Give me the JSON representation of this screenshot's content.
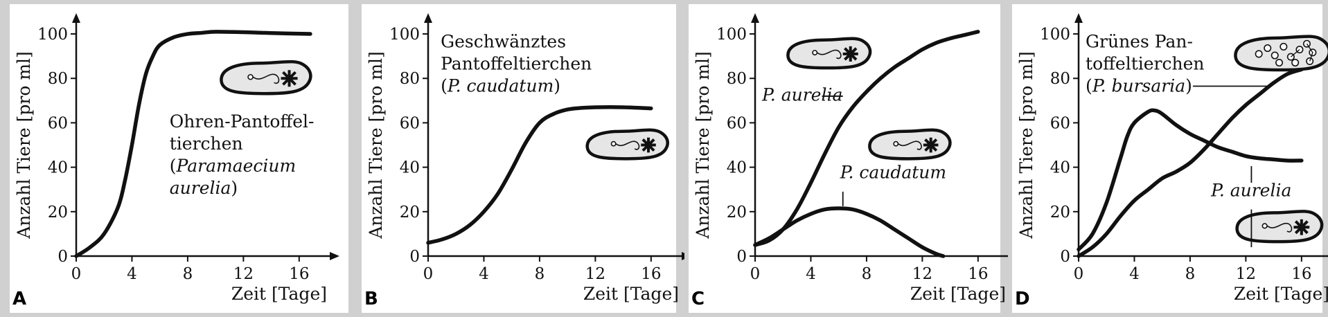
{
  "colors": {
    "background": "#d0d0d0",
    "panel": "#ffffff",
    "ink": "#111111",
    "cell": "#e6e6e6"
  },
  "axis": {
    "ylabel": "Anzahl Tiere [pro ml]",
    "xlabel": "Zeit [Tage]",
    "x_ticks": [
      0,
      4,
      8,
      12,
      16
    ],
    "y_ticks": [
      0,
      20,
      40,
      60,
      80,
      100
    ],
    "xlim": [
      0,
      17.5
    ],
    "ylim": [
      0,
      105
    ]
  },
  "chart_data": [
    {
      "type": "line",
      "panel": "A",
      "annotation": [
        "Ohren-Pantoffel-",
        "tierchen",
        "(",
        "Paramaecium",
        "aurelia",
        ")"
      ],
      "series": [
        {
          "x": [
            0,
            1,
            2,
            3,
            3.5,
            4,
            4.5,
            5,
            5.5,
            6,
            7,
            8,
            9,
            10,
            12,
            14,
            16.8
          ],
          "y": [
            0,
            4,
            10,
            22,
            34,
            50,
            68,
            82,
            90,
            95,
            98.5,
            100,
            100.5,
            101,
            100.8,
            100.4,
            100
          ]
        }
      ]
    },
    {
      "type": "line",
      "panel": "B",
      "annotation": [
        "Geschwänztes",
        "Pantoffeltierchen",
        "(",
        "P. caudatum",
        ")"
      ],
      "series": [
        {
          "x": [
            0,
            1,
            2,
            3,
            4,
            5,
            6,
            7,
            8,
            9,
            10,
            11,
            12,
            14,
            16
          ],
          "y": [
            6,
            7.5,
            10,
            14,
            20,
            28,
            39,
            51,
            60,
            64,
            66,
            66.7,
            67,
            67,
            66.5
          ]
        }
      ]
    },
    {
      "type": "line",
      "panel": "C",
      "series": [
        {
          "name": "P. aurelia",
          "x": [
            0,
            1,
            2,
            3,
            4,
            5,
            6,
            7,
            8,
            9,
            10,
            11,
            12,
            13,
            14,
            15,
            16
          ],
          "y": [
            5,
            7,
            12,
            21,
            33,
            46,
            58,
            67,
            74,
            80,
            85,
            89,
            93,
            96,
            98,
            99.5,
            101
          ]
        },
        {
          "name": "P. caudatum",
          "x": [
            0,
            1,
            2,
            3,
            4,
            5,
            6,
            7,
            8,
            9,
            10,
            11,
            12,
            13,
            13.5
          ],
          "y": [
            5,
            8,
            12,
            16,
            19,
            21,
            21.5,
            21,
            19,
            16,
            12,
            8,
            4,
            1,
            0
          ]
        }
      ]
    },
    {
      "type": "line",
      "panel": "D",
      "annotation": [
        "Grünes Pan-",
        "toffeltierchen",
        "(",
        "P. bursaria",
        ")"
      ],
      "series": [
        {
          "name": "P. bursaria",
          "x": [
            0,
            1,
            2,
            3,
            4,
            5,
            6,
            7,
            8,
            9,
            10,
            11,
            12,
            13,
            14,
            15,
            16
          ],
          "y": [
            0,
            4,
            10,
            18,
            25,
            30,
            35,
            38,
            42,
            48,
            55,
            62,
            68,
            73,
            78,
            82,
            84
          ]
        },
        {
          "name": "P. aurelia",
          "x": [
            0,
            1,
            2,
            3,
            3.5,
            4,
            5,
            5.5,
            6,
            7,
            8,
            9,
            10,
            11,
            12,
            13,
            14,
            15,
            16
          ],
          "y": [
            3,
            10,
            24,
            44,
            54,
            60,
            65,
            65.5,
            64,
            59,
            55,
            52,
            49,
            47,
            45,
            44,
            43.5,
            43,
            43
          ]
        }
      ]
    }
  ]
}
